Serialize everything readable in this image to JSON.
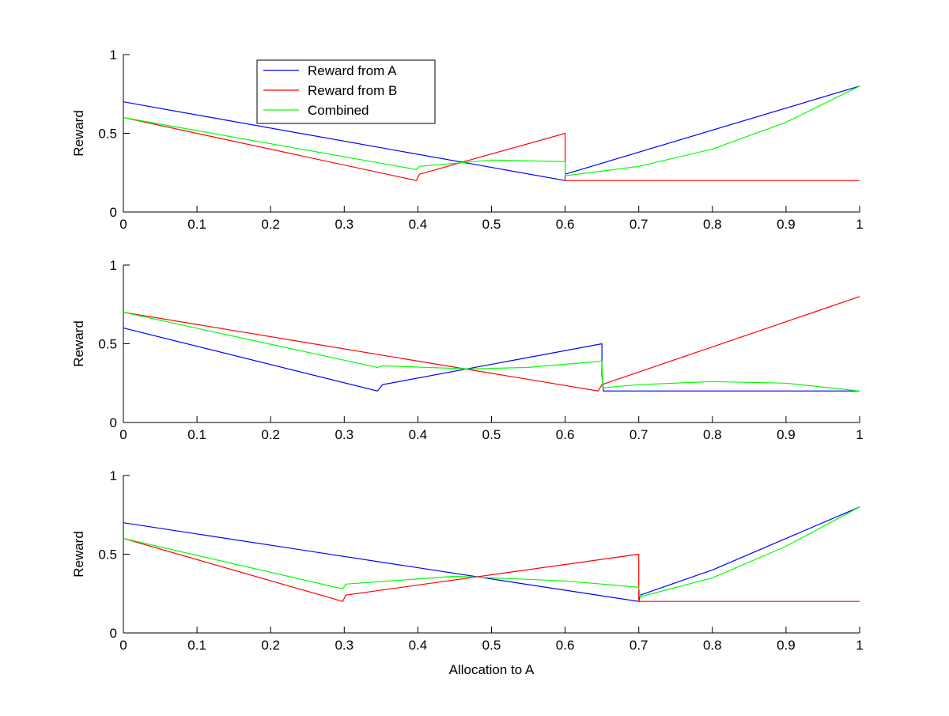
{
  "chart_data": [
    {
      "type": "line",
      "title": "",
      "xlabel": "",
      "ylabel": "Reward",
      "xlim": [
        0,
        1
      ],
      "ylim": [
        0,
        1
      ],
      "xticks": [
        "0",
        "0.1",
        "0.2",
        "0.3",
        "0.4",
        "0.5",
        "0.6",
        "0.7",
        "0.8",
        "0.9",
        "1"
      ],
      "yticks": [
        "0",
        "0.5",
        "1"
      ],
      "legend": {
        "placement": "top-left",
        "entries": [
          "Reward from A",
          "Reward from B",
          "Combined"
        ]
      },
      "series": [
        {
          "name": "Reward from A",
          "color": "#0000ff",
          "x": [
            0,
            0.6,
            0.6,
            0.6,
            1
          ],
          "y": [
            0.7,
            0.2,
            null,
            0.24,
            0.8
          ]
        },
        {
          "name": "Reward from B",
          "color": "#ff0000",
          "x": [
            0,
            0.398,
            0.402,
            0.6,
            0.6,
            1
          ],
          "y": [
            0.6,
            0.2,
            0.24,
            0.5,
            0.2,
            0.2
          ]
        },
        {
          "name": "Combined",
          "color": "#00ff00",
          "x": [
            0,
            0.398,
            0.402,
            0.5,
            0.6,
            0.6,
            0.7,
            0.8,
            0.9,
            1
          ],
          "y": [
            0.6,
            0.27,
            0.29,
            0.33,
            0.32,
            0.23,
            0.29,
            0.4,
            0.57,
            0.8
          ]
        }
      ]
    },
    {
      "type": "line",
      "title": "",
      "xlabel": "",
      "ylabel": "Reward",
      "xlim": [
        0,
        1
      ],
      "ylim": [
        0,
        1
      ],
      "xticks": [
        "0",
        "0.1",
        "0.2",
        "0.3",
        "0.4",
        "0.5",
        "0.6",
        "0.7",
        "0.8",
        "0.9",
        "1"
      ],
      "yticks": [
        "0",
        "0.5",
        "1"
      ],
      "series": [
        {
          "name": "Reward from A",
          "color": "#0000ff",
          "x": [
            0,
            0.345,
            0.352,
            0.65,
            0.65,
            0.652,
            1
          ],
          "y": [
            0.6,
            0.2,
            0.24,
            0.5,
            0.3,
            0.2,
            0.2
          ]
        },
        {
          "name": "Reward from B",
          "color": "#ff0000",
          "x": [
            0,
            0.645,
            0.65,
            1
          ],
          "y": [
            0.7,
            0.2,
            0.24,
            0.8
          ]
        },
        {
          "name": "Combined",
          "color": "#00ff00",
          "x": [
            0,
            0.345,
            0.352,
            0.47,
            0.55,
            0.65,
            0.651,
            0.7,
            0.8,
            0.9,
            1
          ],
          "y": [
            0.7,
            0.35,
            0.36,
            0.34,
            0.35,
            0.39,
            0.22,
            0.24,
            0.26,
            0.25,
            0.2
          ]
        }
      ]
    },
    {
      "type": "line",
      "title": "",
      "xlabel": "Allocation to A",
      "ylabel": "Reward",
      "xlim": [
        0,
        1
      ],
      "ylim": [
        0,
        1
      ],
      "xticks": [
        "0",
        "0.1",
        "0.2",
        "0.3",
        "0.4",
        "0.5",
        "0.6",
        "0.7",
        "0.8",
        "0.9",
        "1"
      ],
      "yticks": [
        "0",
        "0.5",
        "1"
      ],
      "series": [
        {
          "name": "Reward from A",
          "color": "#0000ff",
          "x": [
            0,
            0.7,
            0.702,
            0.8,
            0.9,
            1
          ],
          "y": [
            0.7,
            0.2,
            0.24,
            0.4,
            0.6,
            0.8
          ]
        },
        {
          "name": "Reward from B",
          "color": "#ff0000",
          "x": [
            0,
            0.298,
            0.302,
            0.7,
            0.7,
            1
          ],
          "y": [
            0.6,
            0.2,
            0.24,
            0.5,
            0.2,
            0.2
          ]
        },
        {
          "name": "Combined",
          "color": "#00ff00",
          "x": [
            0,
            0.298,
            0.302,
            0.45,
            0.6,
            0.7,
            0.702,
            0.8,
            0.9,
            1
          ],
          "y": [
            0.6,
            0.28,
            0.31,
            0.36,
            0.33,
            0.29,
            0.23,
            0.35,
            0.55,
            0.8
          ]
        }
      ]
    }
  ]
}
